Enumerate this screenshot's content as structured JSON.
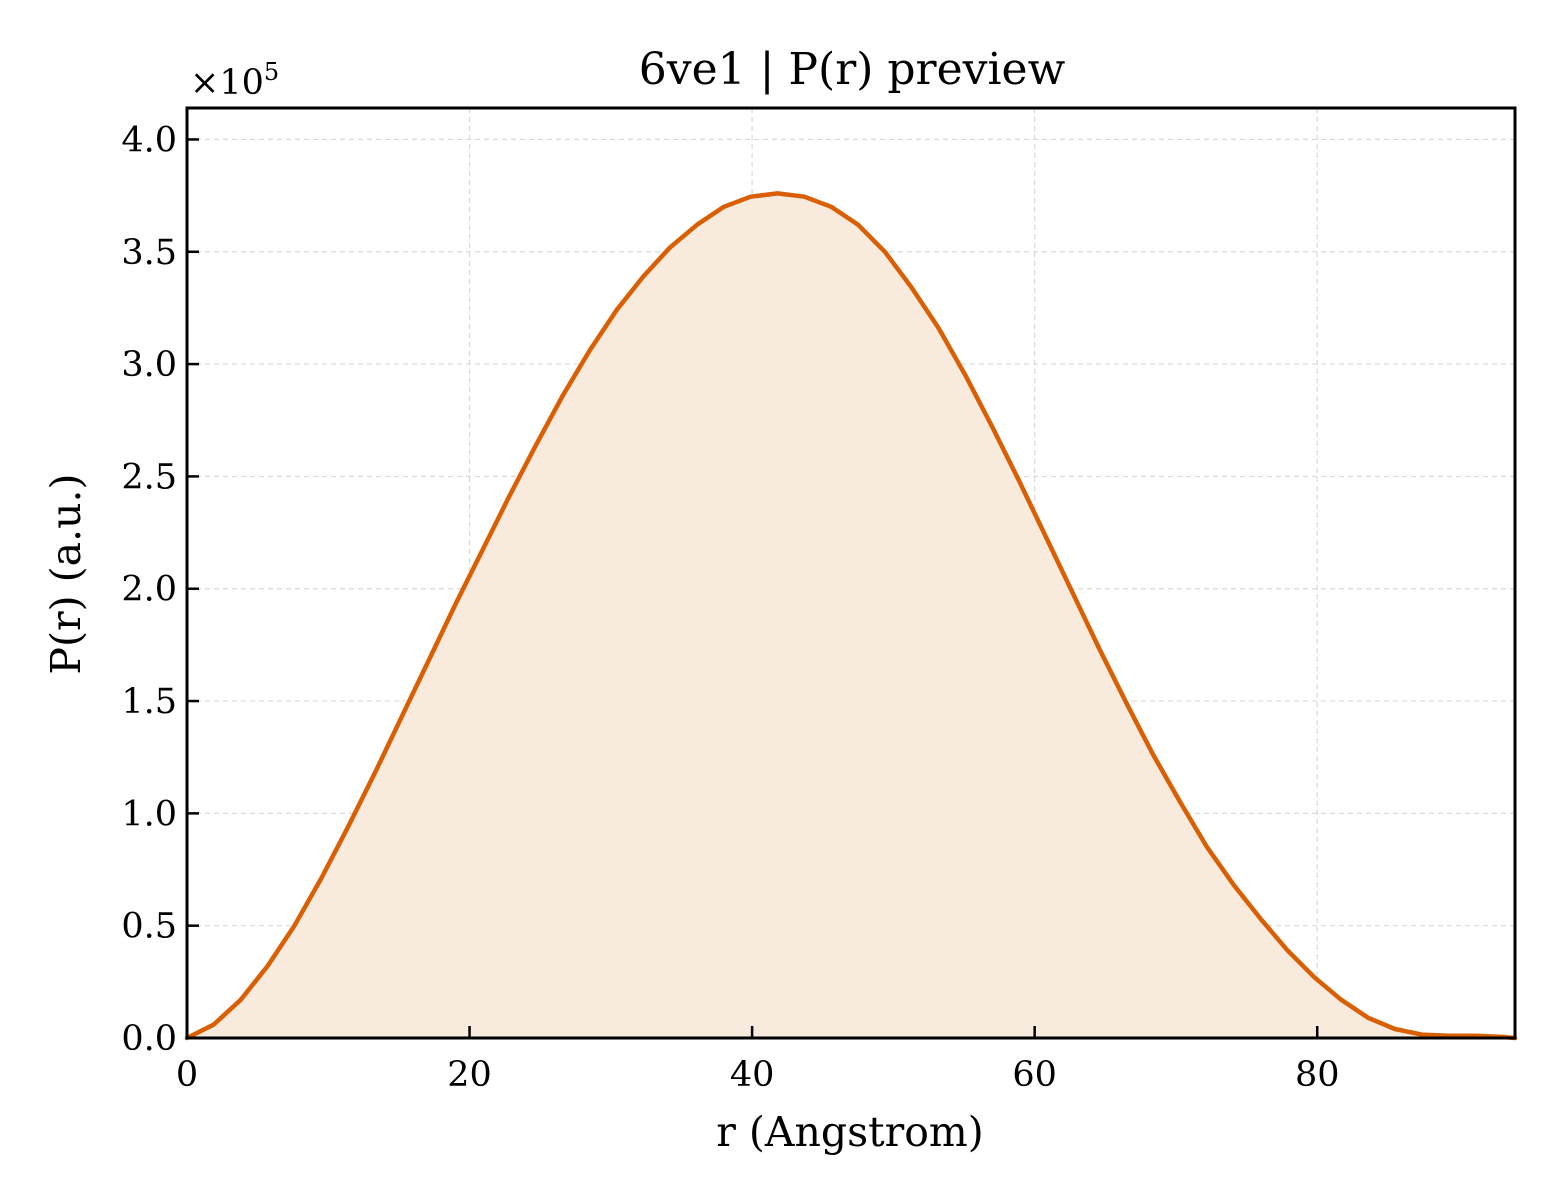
{
  "chart_data": {
    "type": "area",
    "title": "6ve1 | P(r) preview",
    "xlabel": "r (Angstrom)",
    "ylabel": "P(r) (a.u.)",
    "y_scale_multiplier": "×10",
    "y_scale_exponent": "5",
    "xlim": [
      0,
      94
    ],
    "ylim": [
      0,
      4.14
    ],
    "xticks": [
      0,
      20,
      40,
      60,
      80
    ],
    "yticks": [
      0.0,
      0.5,
      1.0,
      1.5,
      2.0,
      2.5,
      3.0,
      3.5,
      4.0
    ],
    "grid": true,
    "series": [
      {
        "line_color": "#d95f02",
        "fill_color": "#f9eade",
        "x": [
          0,
          1.9,
          3.8,
          5.7,
          7.6,
          9.5,
          11.4,
          13.3,
          15.2,
          17.1,
          19.0,
          20.9,
          22.8,
          24.7,
          26.6,
          28.5,
          30.4,
          32.3,
          34.2,
          36.1,
          38.0,
          39.9,
          41.8,
          43.7,
          45.6,
          47.5,
          49.4,
          51.3,
          53.2,
          55.1,
          57.0,
          58.9,
          60.8,
          62.7,
          64.6,
          66.5,
          68.4,
          70.3,
          72.2,
          74.1,
          76.0,
          77.9,
          79.8,
          81.7,
          83.6,
          85.5,
          87.4,
          89.3,
          91.2,
          93.1,
          94.0
        ],
        "y": [
          0.0,
          0.06,
          0.17,
          0.32,
          0.5,
          0.71,
          0.94,
          1.18,
          1.43,
          1.68,
          1.93,
          2.17,
          2.41,
          2.64,
          2.86,
          3.06,
          3.24,
          3.39,
          3.52,
          3.62,
          3.7,
          3.745,
          3.76,
          3.745,
          3.7,
          3.62,
          3.5,
          3.34,
          3.16,
          2.95,
          2.72,
          2.48,
          2.23,
          1.98,
          1.73,
          1.49,
          1.26,
          1.05,
          0.85,
          0.68,
          0.53,
          0.39,
          0.27,
          0.17,
          0.09,
          0.04,
          0.015,
          0.01,
          0.01,
          0.005,
          0.0
        ]
      }
    ]
  }
}
